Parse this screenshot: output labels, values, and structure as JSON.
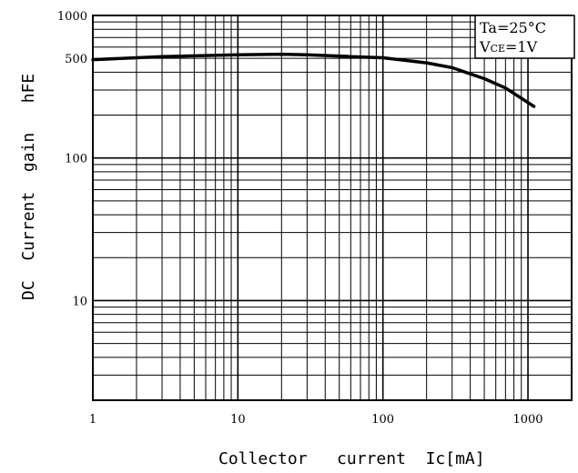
{
  "chart_data": {
    "type": "line",
    "x_scale": "log",
    "y_scale": "log",
    "xlim": [
      1,
      2000
    ],
    "ylim": [
      2,
      1000
    ],
    "x_tick_labels": [
      "1",
      "10",
      "100",
      "1000"
    ],
    "y_tick_labels": [
      "1000",
      "500",
      "100",
      "10"
    ],
    "y_tick_values": [
      1000,
      500,
      100,
      10
    ],
    "xlabel": "Collector   current  Ic[mA]",
    "ylabel": "DC  Current  gain   hFE",
    "grid": true,
    "conditions": {
      "ta_label": "Ta=25°C",
      "vce_prefix": "V",
      "vce_subscript": "CE",
      "vce_suffix": "=1V"
    },
    "series": [
      {
        "color": "#000000",
        "points": [
          {
            "x": 1,
            "y": 490
          },
          {
            "x": 3,
            "y": 515
          },
          {
            "x": 10,
            "y": 530
          },
          {
            "x": 20,
            "y": 535
          },
          {
            "x": 30,
            "y": 530
          },
          {
            "x": 60,
            "y": 515
          },
          {
            "x": 100,
            "y": 505
          },
          {
            "x": 200,
            "y": 465
          },
          {
            "x": 300,
            "y": 430
          },
          {
            "x": 500,
            "y": 360
          },
          {
            "x": 700,
            "y": 310
          },
          {
            "x": 1100,
            "y": 230
          }
        ]
      }
    ]
  }
}
